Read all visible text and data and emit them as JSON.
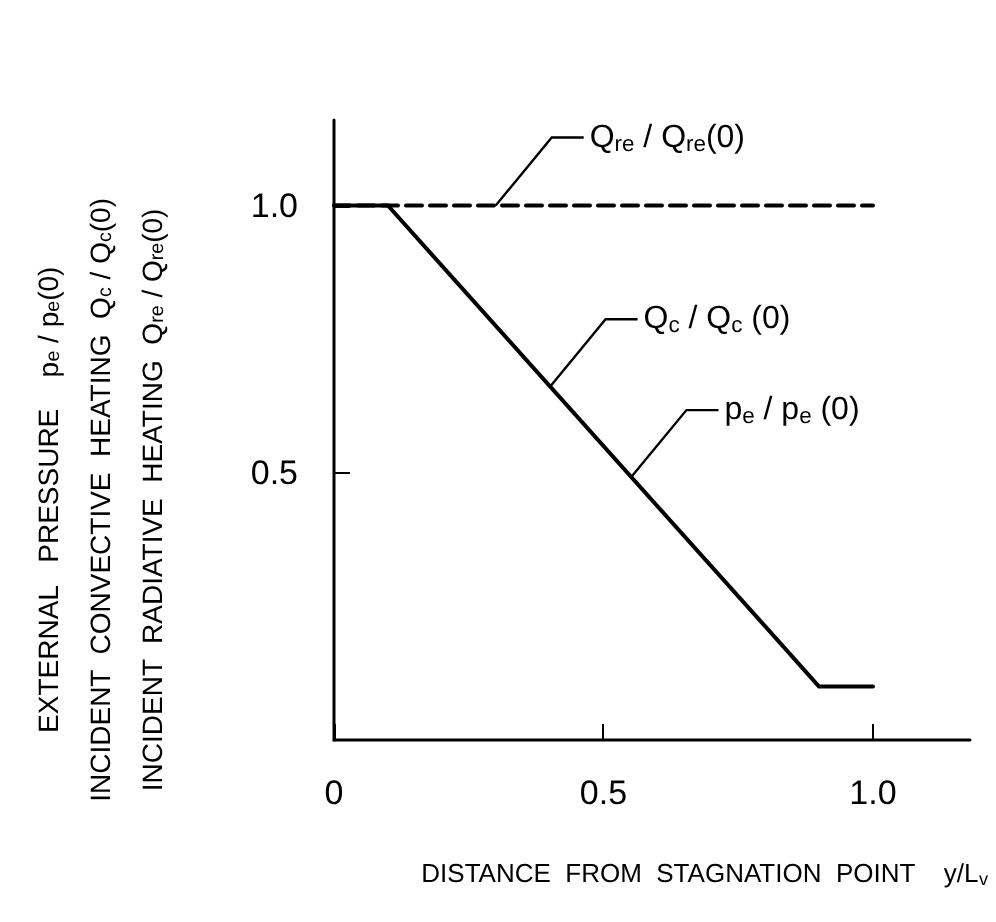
{
  "chart_data": {
    "type": "line",
    "xlabel": "DISTANCE  FROM  STAGNATION  POINT    y/L$_{v}$",
    "ylabel": "EXTERNAL   PRESSURE    p$_{e}$ / p$_{e}$(0)\nINCIDENT  CONVECTIVE  HEATING  Q$_{c}$ / Q$_{c}$(0)\nINCIDENT  RADIATIVE  HEATING  Q$_{re}$ / Q$_{re}$(0)",
    "xlim": [
      0,
      1.18
    ],
    "ylim": [
      0,
      1.16
    ],
    "xticks": [
      0,
      0.5,
      {
        "value": 1,
        "label": "1.0"
      }
    ],
    "yticks": [
      0.5,
      {
        "value": 1,
        "label": "1.0"
      }
    ],
    "grid": false,
    "marker": "none",
    "series": [
      {
        "color": "#000000",
        "line_style": "dashed",
        "x": [
          0,
          1
        ],
        "values": [
          1,
          1
        ]
      },
      {
        "color": "#000000",
        "line_style": "solid",
        "x": [
          0,
          0.1,
          0.9,
          1
        ],
        "values": [
          1,
          1,
          0.1,
          0.1
        ]
      }
    ],
    "annotations": [
      {
        "text": "Q$_{re}$ / Q$_{re}$(0)",
        "x": 0.3,
        "y": 1
      },
      {
        "text": "Q$_{c}$ / Q$_{c}$ (0)",
        "x": 0.4,
        "y": 0.66
      },
      {
        "text": "p$_{e}$ / p$_{e}$ (0)",
        "x": 0.55,
        "y": 0.49
      }
    ]
  }
}
